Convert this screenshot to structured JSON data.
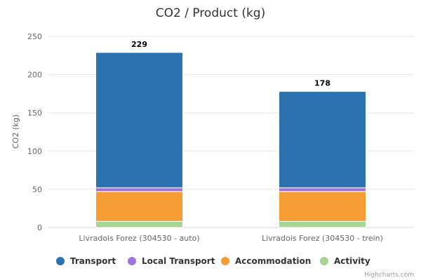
{
  "chart_data": {
    "type": "bar",
    "stacked": true,
    "title": "CO2 / Product (kg)",
    "xlabel": "",
    "ylabel": "CO2 (kg)",
    "ylim": [
      0,
      250
    ],
    "yticks": [
      0,
      50,
      100,
      150,
      200,
      250
    ],
    "grid": true,
    "legend_position": "bottom",
    "categories": [
      "Livradois Forez (304530 - auto)",
      "Livradois Forez (304530 - trein)"
    ],
    "series": [
      {
        "name": "Activity",
        "color": "#a6d493",
        "values": [
          8,
          8
        ]
      },
      {
        "name": "Accommodation",
        "color": "#f59d34",
        "values": [
          39,
          39
        ]
      },
      {
        "name": "Local Transport",
        "color": "#9f75e0",
        "values": [
          5,
          5
        ]
      },
      {
        "name": "Transport",
        "color": "#2b72b0",
        "values": [
          177,
          126
        ]
      }
    ],
    "legend_order": [
      "Transport",
      "Local Transport",
      "Accommodation",
      "Activity"
    ],
    "totals": [
      "229",
      "178"
    ]
  },
  "credits": "Highcharts.com"
}
